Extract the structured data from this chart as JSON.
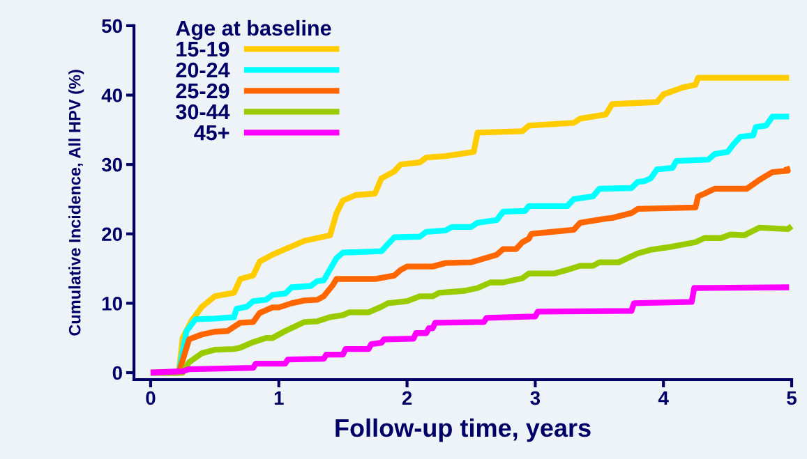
{
  "chart_data": {
    "type": "line",
    "xlabel": "Follow-up time, years",
    "ylabel": "Cumulative Incidence, All HPV (%)",
    "legend_title": "Age at baseline",
    "legend": "top left",
    "grid": false,
    "marker": "none",
    "line_style": "solid",
    "xlim": [
      -0.13,
      5
    ],
    "xticks": [
      0,
      1,
      2,
      3,
      4,
      5
    ],
    "ylim": [
      -1,
      50
    ],
    "yticks": [
      0,
      10,
      20,
      30,
      40,
      50
    ],
    "series": [
      {
        "name": "15-19",
        "color": "#ffcc00",
        "x": [
          0,
          0.22,
          0.25,
          0.32,
          0.4,
          0.5,
          0.65,
          0.7,
          0.8,
          0.85,
          0.95,
          1.1,
          1.2,
          1.4,
          1.45,
          1.5,
          1.6,
          1.75,
          1.8,
          1.9,
          1.95,
          2.1,
          2.15,
          2.3,
          2.52,
          2.55,
          2.9,
          2.95,
          3.3,
          3.35,
          3.55,
          3.6,
          3.95,
          4.0,
          4.15,
          4.25,
          4.27,
          4.98
        ],
        "values": [
          0,
          0,
          5,
          7.5,
          9.5,
          11,
          11.5,
          13.5,
          14,
          16,
          17,
          18.2,
          19,
          19.8,
          23,
          24.8,
          25.6,
          25.8,
          28,
          29,
          30,
          30.3,
          31,
          31.2,
          31.8,
          34.6,
          34.8,
          35.6,
          36,
          36.6,
          37.2,
          38.7,
          39,
          40.1,
          41.1,
          41.5,
          42.5,
          42.5
        ]
      },
      {
        "name": "20-24",
        "color": "#00ffff",
        "x": [
          0,
          0.22,
          0.28,
          0.35,
          0.5,
          0.65,
          0.67,
          0.75,
          0.8,
          0.9,
          0.95,
          1.05,
          1.1,
          1.25,
          1.3,
          1.35,
          1.45,
          1.5,
          1.8,
          1.9,
          2.1,
          2.15,
          2.3,
          2.35,
          2.5,
          2.55,
          2.7,
          2.75,
          2.92,
          2.95,
          3.25,
          3.3,
          3.45,
          3.5,
          3.75,
          3.8,
          3.85,
          3.9,
          3.95,
          4.07,
          4.1,
          4.35,
          4.4,
          4.5,
          4.55,
          4.6,
          4.7,
          4.72,
          4.8,
          4.85,
          4.98
        ],
        "values": [
          0,
          0,
          6,
          7.7,
          7.8,
          8,
          9.2,
          9.5,
          10.3,
          10.5,
          11.2,
          11.4,
          12.3,
          12.5,
          13.2,
          13.3,
          16.5,
          17.3,
          17.5,
          19.5,
          19.6,
          20.3,
          20.5,
          21,
          21,
          21.6,
          22,
          23.2,
          23.3,
          24,
          24,
          25,
          25.4,
          26.5,
          26.6,
          27.5,
          27.6,
          28,
          29.3,
          29.5,
          30.5,
          30.7,
          31.5,
          31.8,
          33,
          34,
          34.2,
          35.4,
          35.6,
          36.9,
          36.9
        ]
      },
      {
        "name": "25-29",
        "color": "#ff6600",
        "x": [
          0,
          0.22,
          0.3,
          0.4,
          0.5,
          0.6,
          0.65,
          0.7,
          0.8,
          0.85,
          0.95,
          1.0,
          1.1,
          1.2,
          1.3,
          1.35,
          1.42,
          1.45,
          1.75,
          1.9,
          1.95,
          2.0,
          2.2,
          2.3,
          2.5,
          2.7,
          2.75,
          2.85,
          2.9,
          2.95,
          2.97,
          3.3,
          3.35,
          3.55,
          3.6,
          3.75,
          3.8,
          4.25,
          4.27,
          4.32,
          4.4,
          4.65,
          4.75,
          4.85,
          4.97,
          4.96
        ],
        "values": [
          0,
          0,
          4.8,
          5.5,
          5.9,
          6,
          6.6,
          7.2,
          7.3,
          8.6,
          9.4,
          9.4,
          10,
          10.4,
          10.5,
          11,
          12.6,
          13.5,
          13.5,
          14,
          14.8,
          15.3,
          15.3,
          15.8,
          15.9,
          17,
          17.8,
          17.8,
          18.8,
          19.3,
          20,
          20.6,
          21.6,
          22.2,
          22.3,
          23,
          23.6,
          23.8,
          25.4,
          25.8,
          26.5,
          26.5,
          27.8,
          28.9,
          29.1,
          29.7
        ]
      },
      {
        "name": "30-44",
        "color": "#99cc00",
        "x": [
          0,
          0.25,
          0.3,
          0.4,
          0.5,
          0.65,
          0.7,
          0.8,
          0.9,
          0.95,
          1.05,
          1.2,
          1.3,
          1.4,
          1.5,
          1.55,
          1.7,
          1.8,
          1.85,
          2.0,
          2.1,
          2.2,
          2.25,
          2.45,
          2.55,
          2.65,
          2.75,
          2.9,
          2.95,
          3.15,
          3.25,
          3.35,
          3.45,
          3.5,
          3.65,
          3.8,
          3.9,
          4.05,
          4.25,
          4.32,
          4.45,
          4.52,
          4.63,
          4.75,
          4.97,
          5.0
        ],
        "values": [
          0,
          0,
          1.5,
          2.8,
          3.3,
          3.4,
          3.6,
          4.4,
          5,
          5,
          6,
          7.3,
          7.4,
          8,
          8.3,
          8.7,
          8.7,
          9.5,
          10,
          10.3,
          11,
          11,
          11.5,
          11.8,
          12.2,
          13,
          13,
          13.6,
          14.3,
          14.3,
          14.8,
          15.4,
          15.4,
          15.9,
          15.9,
          17.2,
          17.7,
          18.1,
          18.8,
          19.4,
          19.4,
          19.9,
          19.8,
          20.9,
          20.7,
          21.1
        ]
      },
      {
        "name": "45+",
        "color": "#ff00ff",
        "x": [
          0,
          0.25,
          0.3,
          0.8,
          0.82,
          1.05,
          1.07,
          1.35,
          1.37,
          1.5,
          1.52,
          1.7,
          1.72,
          1.8,
          1.82,
          2.05,
          2.07,
          2.15,
          2.17,
          2.2,
          2.22,
          2.6,
          2.62,
          3.0,
          3.02,
          3.75,
          3.77,
          4.22,
          4.24,
          4.98
        ],
        "values": [
          0,
          0.2,
          0.5,
          0.7,
          1.3,
          1.3,
          1.9,
          2.0,
          2.6,
          2.6,
          3.4,
          3.4,
          4.1,
          4.3,
          4.8,
          4.9,
          5.7,
          5.7,
          6.4,
          6.4,
          7.2,
          7.3,
          7.9,
          8.1,
          8.8,
          8.9,
          10,
          10.2,
          12.2,
          12.3
        ]
      }
    ]
  }
}
